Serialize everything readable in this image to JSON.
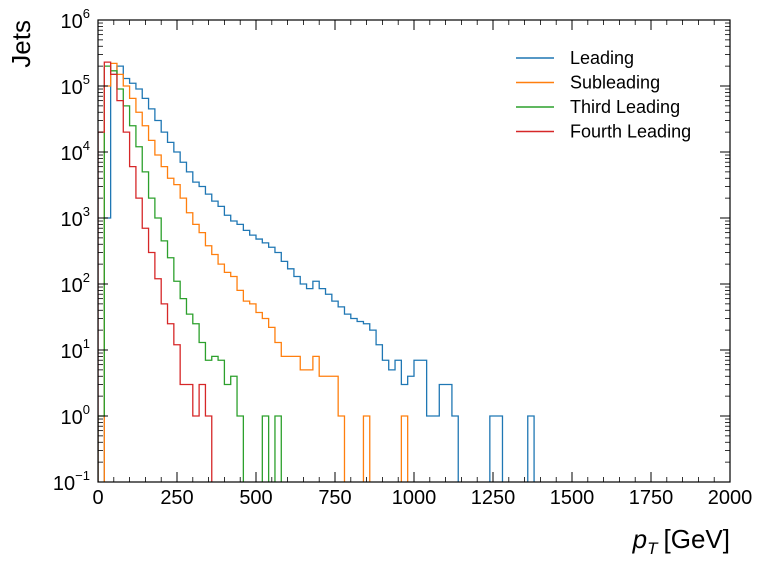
{
  "chart_data": {
    "type": "histogram",
    "xlabel": "p",
    "xlabel_subscript": "T",
    "xlabel_unit": "[GeV]",
    "ylabel": "Jets",
    "xlim": [
      0,
      2000
    ],
    "ylim": [
      0.1,
      1000000
    ],
    "yscale": "log",
    "bin_width": 20,
    "x_ticks": [
      "0",
      "250",
      "500",
      "750",
      "1000",
      "1250",
      "1500",
      "1750",
      "2000"
    ],
    "y_ticks": [
      {
        "base": "10",
        "exp": "−1"
      },
      {
        "base": "10",
        "exp": "0"
      },
      {
        "base": "10",
        "exp": "1"
      },
      {
        "base": "10",
        "exp": "2"
      },
      {
        "base": "10",
        "exp": "3"
      },
      {
        "base": "10",
        "exp": "4"
      },
      {
        "base": "10",
        "exp": "5"
      },
      {
        "base": "10",
        "exp": "6"
      }
    ],
    "legend_position": "top-right",
    "series": [
      {
        "name": "Leading",
        "color": "#1f77b4",
        "x0": 20,
        "values": [
          1000,
          150000,
          200000,
          130000,
          110000,
          90000,
          65000,
          45000,
          30000,
          20000,
          14000,
          10000,
          7000,
          5000,
          3500,
          3000,
          2300,
          1800,
          1500,
          1100,
          900,
          800,
          650,
          550,
          480,
          420,
          360,
          300,
          220,
          170,
          130,
          100,
          85,
          110,
          85,
          70,
          55,
          45,
          35,
          30,
          27,
          25,
          20,
          12,
          7,
          5,
          7,
          3,
          4,
          7,
          7,
          1,
          1,
          3,
          3,
          1,
          0,
          0,
          0,
          0,
          0,
          1,
          1,
          0,
          0,
          0,
          0,
          1,
          0,
          0
        ]
      },
      {
        "name": "Subleading",
        "color": "#ff7f0e",
        "x0": 20,
        "values": [
          100000,
          220000,
          150000,
          100000,
          65000,
          40000,
          25000,
          15000,
          9000,
          6000,
          4000,
          3200,
          2000,
          1200,
          800,
          600,
          380,
          280,
          200,
          150,
          130,
          80,
          55,
          50,
          37,
          30,
          22,
          13,
          8,
          8,
          8,
          5,
          5,
          8,
          4,
          4,
          4,
          1,
          0,
          0,
          0,
          1,
          0,
          0,
          0,
          0,
          0,
          1
        ]
      },
      {
        "name": "Third Leading",
        "color": "#2ca02c",
        "x0": 0,
        "values": [
          1,
          200000,
          170000,
          90000,
          50000,
          25000,
          12000,
          5000,
          2000,
          1000,
          450,
          250,
          110,
          60,
          35,
          25,
          13,
          7,
          8,
          7,
          3,
          4,
          1,
          0,
          0,
          0,
          1,
          0,
          1
        ]
      },
      {
        "name": "Fourth Leading",
        "color": "#d62728",
        "x0": 0,
        "values": [
          20000,
          230000,
          150000,
          60000,
          20000,
          6000,
          2000,
          700,
          300,
          120,
          50,
          25,
          12,
          3,
          3,
          1,
          3,
          1,
          0,
          0,
          0,
          0,
          0,
          0,
          0,
          0
        ]
      }
    ]
  }
}
